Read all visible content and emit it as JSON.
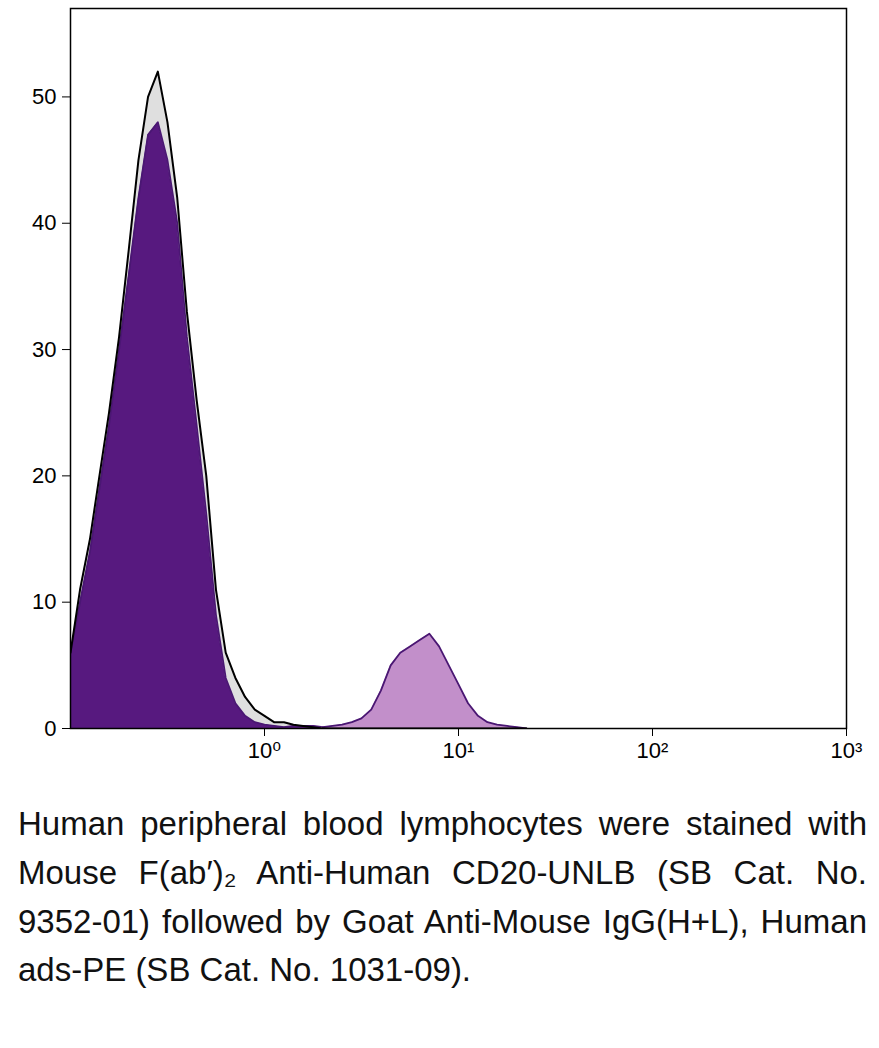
{
  "chart_data": {
    "type": "histogram_overlay",
    "caption": "Human peripheral blood lymphocytes were stained with Mouse F(ab′)₂ Anti-Human CD20-UNLB (SB Cat. No. 9352-01) followed by Goat Anti-Mouse IgG(H+L), Human ads-PE (SB Cat. No. 1031-09).",
    "log": "x",
    "xlim": [
      0.1,
      1000
    ],
    "xticks": [
      {
        "value": 1,
        "label": "10⁰"
      },
      {
        "value": 10,
        "label": "10¹"
      },
      {
        "value": 100,
        "label": "10²"
      },
      {
        "value": 1000,
        "label": "10³"
      }
    ],
    "ylim": [
      0,
      57
    ],
    "yticks": [
      0,
      10,
      20,
      30,
      40,
      50
    ],
    "x": [
      0.1,
      0.112,
      0.126,
      0.141,
      0.158,
      0.178,
      0.2,
      0.224,
      0.251,
      0.282,
      0.316,
      0.355,
      0.398,
      0.447,
      0.501,
      0.562,
      0.631,
      0.708,
      0.794,
      0.891,
      1,
      1.12,
      1.26,
      1.41,
      1.58,
      1.78,
      2,
      2.24,
      2.51,
      2.82,
      3.16,
      3.55,
      3.98,
      4.47,
      5.01,
      5.62,
      6.31,
      7.08,
      7.94,
      8.91,
      10,
      11.2,
      12.6,
      14.1,
      15.8,
      17.8,
      20,
      22.4
    ],
    "series": [
      {
        "type": "line",
        "color": "#000000",
        "values": [
          6,
          11,
          15,
          20,
          25,
          31,
          38,
          45,
          50,
          52,
          48,
          42,
          33,
          26,
          20,
          11,
          6,
          4,
          2.5,
          1.5,
          1,
          0.5,
          0.5,
          0.3,
          0.2,
          0.1,
          0,
          0,
          0,
          0,
          0,
          0,
          0,
          0,
          0,
          0,
          0,
          0,
          0,
          0,
          0,
          0,
          0,
          0,
          0,
          0,
          0,
          0
        ]
      },
      {
        "type": "area",
        "color": "#57197f",
        "values": [
          6,
          10,
          14,
          19,
          24,
          30,
          36,
          42,
          47,
          48,
          45,
          40,
          31,
          24,
          17,
          9,
          4,
          2,
          1,
          0.5,
          0.3,
          0.2,
          0.1,
          0.2,
          0.2,
          0.2,
          0.1,
          null,
          null,
          null,
          null,
          null,
          null,
          null,
          null,
          null,
          null,
          null,
          null,
          null,
          null,
          null,
          null,
          null,
          null,
          null,
          null,
          null
        ]
      },
      {
        "type": "area",
        "color": "#c28fca",
        "values": [
          null,
          null,
          null,
          null,
          null,
          null,
          null,
          null,
          null,
          null,
          null,
          null,
          null,
          null,
          null,
          null,
          null,
          null,
          null,
          null,
          null,
          null,
          null,
          null,
          null,
          null,
          0.1,
          0.2,
          0.3,
          0.5,
          0.8,
          1.5,
          3,
          5,
          6,
          6.5,
          7,
          7.5,
          6.5,
          5,
          3.5,
          2,
          1,
          0.5,
          0.3,
          0.2,
          0.1,
          0
        ]
      }
    ]
  }
}
